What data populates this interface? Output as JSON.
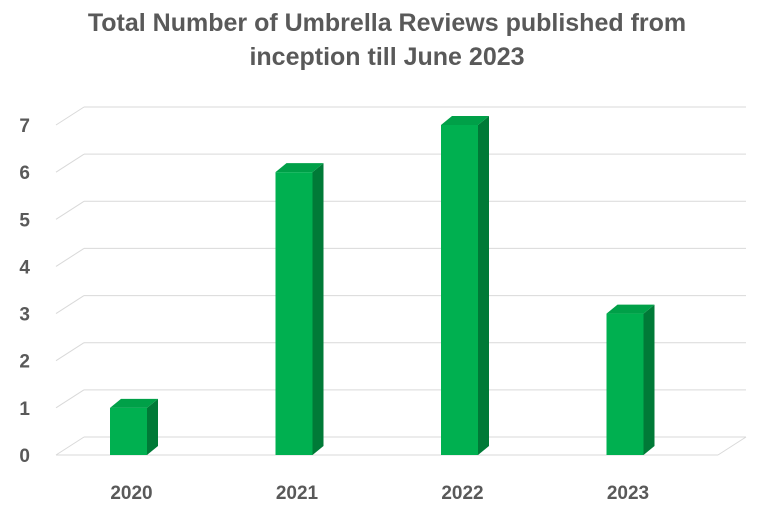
{
  "chart_data": {
    "type": "bar",
    "title_lines": [
      "Total Number of Umbrella Reviews published from",
      "inception till June 2023"
    ],
    "categories": [
      "2020",
      "2021",
      "2022",
      "2023"
    ],
    "values": [
      1,
      6,
      7,
      3
    ],
    "ylim": [
      0,
      7
    ],
    "yticks": [
      "0",
      "1",
      "2",
      "3",
      "4",
      "5",
      "6",
      "7"
    ],
    "xlabel": "",
    "ylabel": "",
    "grid": true,
    "legend": "none",
    "colors": {
      "bar_front": "#00b050",
      "bar_side": "#007a37",
      "bar_top": "#00a048",
      "grid": "#d9d9d9"
    }
  }
}
